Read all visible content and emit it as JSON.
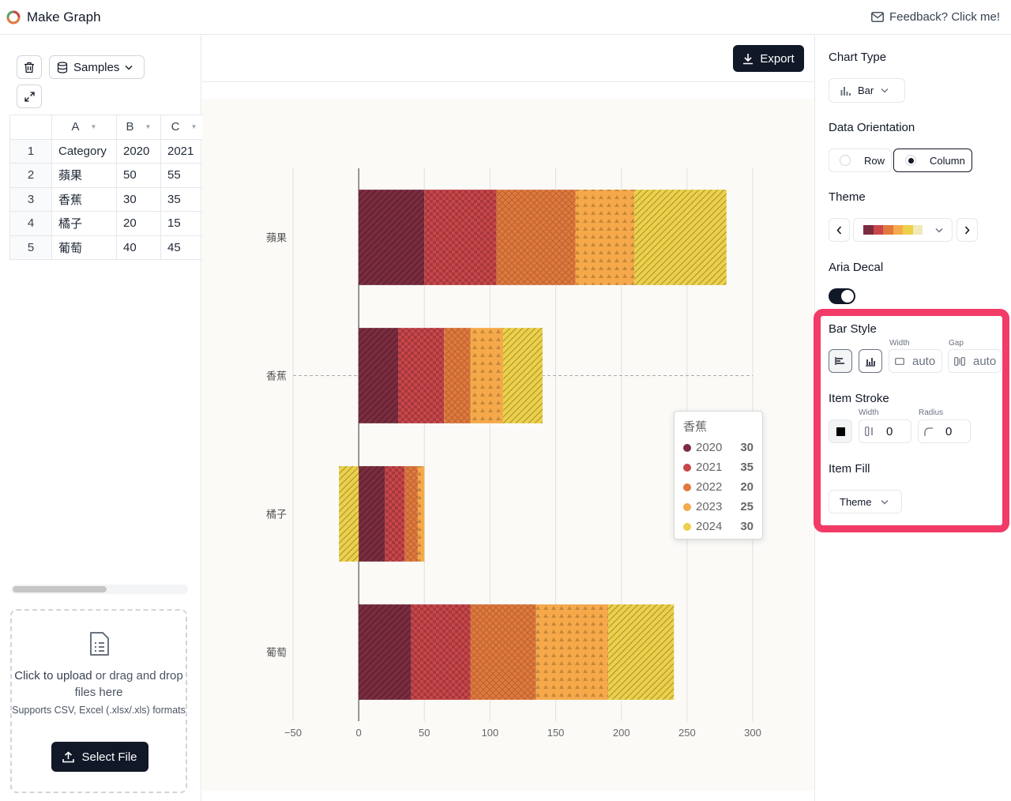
{
  "app": {
    "title": "Make Graph",
    "feedback": "Feedback? Click me!"
  },
  "left": {
    "samples_label": "Samples",
    "grid": {
      "columns": [
        "A",
        "B",
        "C"
      ],
      "rows": [
        {
          "num": "1",
          "cells": [
            "Category",
            "2020",
            "2021"
          ]
        },
        {
          "num": "2",
          "cells": [
            "蘋果",
            "50",
            "55"
          ]
        },
        {
          "num": "3",
          "cells": [
            "香蕉",
            "30",
            "35"
          ]
        },
        {
          "num": "4",
          "cells": [
            "橘子",
            "20",
            "15"
          ]
        },
        {
          "num": "5",
          "cells": [
            "葡萄",
            "40",
            "45"
          ]
        }
      ]
    },
    "upload": {
      "click_text": "Click to upload",
      "rest_text": " or drag and drop files here",
      "sub_text": "Supports CSV, Excel (.xlsx/.xls) formats",
      "button": "Select File"
    }
  },
  "center": {
    "export_label": "Export"
  },
  "chart_data": {
    "type": "bar",
    "orientation": "horizontal",
    "stacked": true,
    "categories": [
      "蘋果",
      "香蕉",
      "橘子",
      "葡萄"
    ],
    "series": [
      {
        "name": "2020",
        "values": [
          50,
          30,
          20,
          40
        ]
      },
      {
        "name": "2021",
        "values": [
          55,
          35,
          15,
          45
        ]
      },
      {
        "name": "2022",
        "values": [
          60,
          20,
          10,
          50
        ]
      },
      {
        "name": "2023",
        "values": [
          45,
          25,
          5,
          55
        ]
      },
      {
        "name": "2024",
        "values": [
          70,
          30,
          -15,
          50
        ]
      }
    ],
    "xlim": [
      -50,
      300
    ],
    "xticks": [
      "−50",
      "0",
      "50",
      "100",
      "150",
      "200",
      "250",
      "300"
    ],
    "colors": [
      "#7b2c3f",
      "#c9464a",
      "#e0793d",
      "#f5a94a",
      "#ecd04a"
    ],
    "patterns": [
      "diagonal",
      "checker",
      "crosshatch",
      "triangles",
      "diagonal-light"
    ],
    "grid": true,
    "tooltip": {
      "title": "香蕉",
      "rows": [
        {
          "name": "2020",
          "value": "30",
          "color": "#7b2c3f"
        },
        {
          "name": "2021",
          "value": "35",
          "color": "#c9464a"
        },
        {
          "name": "2022",
          "value": "20",
          "color": "#e0793d"
        },
        {
          "name": "2023",
          "value": "25",
          "color": "#f5a94a"
        },
        {
          "name": "2024",
          "value": "30",
          "color": "#ecd04a"
        }
      ]
    }
  },
  "right": {
    "chart_type_label": "Chart Type",
    "chart_type_value": "Bar",
    "orientation_label": "Data Orientation",
    "orientation_row": "Row",
    "orientation_column": "Column",
    "orientation_selected": "Column",
    "theme_label": "Theme",
    "theme_swatches": [
      "#7b2c3f",
      "#c9464a",
      "#e0793d",
      "#f5a94a",
      "#ecd04a",
      "#f1e9b8"
    ],
    "aria_label": "Aria Decal",
    "aria_on": true,
    "bar_style_label": "Bar Style",
    "width_label": "Width",
    "width_value": "auto",
    "gap_label": "Gap",
    "gap_value": "auto",
    "stroke_label": "Item Stroke",
    "stroke_width_label": "Width",
    "stroke_width_value": "0",
    "radius_label": "Radius",
    "radius_value": "0",
    "fill_label": "Item Fill",
    "fill_value": "Theme"
  }
}
